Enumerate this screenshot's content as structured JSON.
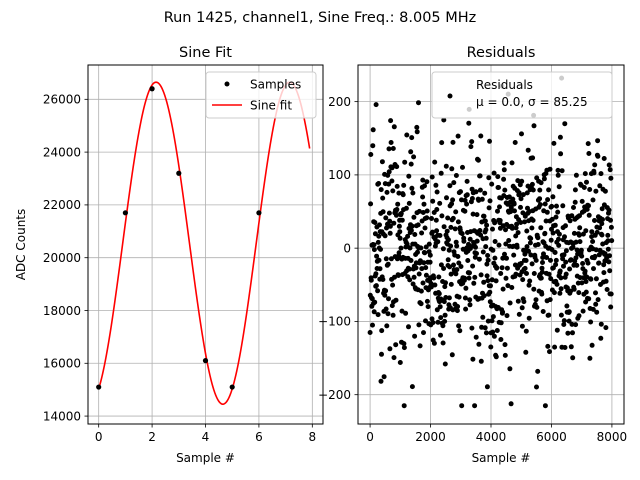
{
  "suptitle": "Run 1425, channel1, Sine Freq.: 8.005 MHz",
  "colors": {
    "fit": "#ff0000",
    "points": "#000000",
    "grid": "#b0b0b0"
  },
  "chart_data": [
    {
      "type": "line",
      "title": "Sine Fit",
      "xlabel": "Sample #",
      "ylabel": "ADC Counts",
      "xlim": [
        -0.4,
        8.4
      ],
      "ylim": [
        13700,
        27300
      ],
      "xticks": [
        "0",
        "2",
        "4",
        "6",
        "8"
      ],
      "yticks": [
        "14000",
        "16000",
        "18000",
        "20000",
        "22000",
        "24000",
        "26000"
      ],
      "grid": true,
      "legend_position": "top-right",
      "series": [
        {
          "name": "Samples",
          "style": "points",
          "x": [
            0,
            1,
            2,
            3,
            4,
            5,
            6
          ],
          "values": [
            15100,
            21700,
            26400,
            23200,
            16100,
            15100,
            21700
          ]
        },
        {
          "name": "Sine fit",
          "style": "line",
          "function": {
            "offset": 20550,
            "amplitude": 6100,
            "period": 5.0,
            "peak_at": 2.15
          },
          "x_range": [
            0,
            7.9
          ]
        }
      ]
    },
    {
      "type": "scatter",
      "title": "Residuals",
      "xlabel": "Sample #",
      "ylabel": "",
      "xlim": [
        -400,
        8400
      ],
      "ylim": [
        -240,
        250
      ],
      "xticks": [
        "0",
        "2000",
        "4000",
        "6000",
        "8000"
      ],
      "yticks": [
        "−200",
        "−100",
        "0",
        "100",
        "200"
      ],
      "grid": true,
      "legend_position": "top-right",
      "series": [
        {
          "name": "Residuals",
          "stats_label": "μ = 0.0, σ = 85.25",
          "n_points": 8000,
          "mean": 0.0,
          "sigma": 85.25,
          "range": [
            -215,
            240
          ]
        }
      ]
    }
  ]
}
